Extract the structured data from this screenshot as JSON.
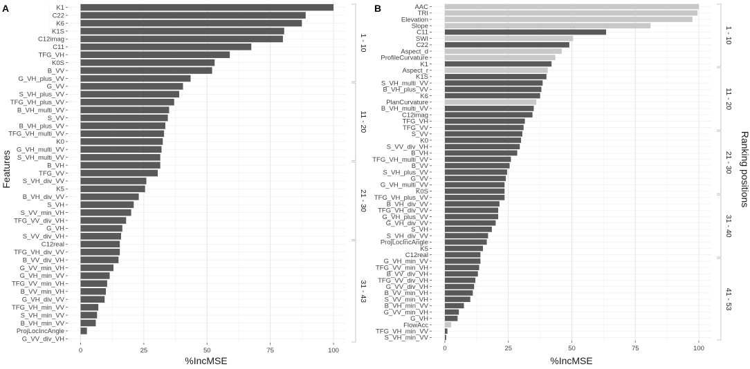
{
  "chart_data": [
    {
      "type": "bar",
      "panel_label": "A",
      "orientation": "horizontal",
      "xlabel": "%IncMSE",
      "ylabel": "Features",
      "xlim": [
        0,
        100
      ],
      "x_ticks": [
        "0",
        "25",
        "50",
        "75",
        "100"
      ],
      "categories": [
        "K1",
        "C22",
        "K6",
        "K1S",
        "C12imag",
        "C11",
        "TFG_VH",
        "K0S",
        "B_VV",
        "G_VH_plus_VV",
        "G_VV",
        "S_VH_plus_VV",
        "TFG_VH_plus_VV",
        "B_VH_multi_VV",
        "S_VV",
        "B_VH_plus_VV",
        "TFG_VH_multi_VV",
        "K0",
        "G_VH_multi_VV",
        "S_VH_multi_VV",
        "B_VH",
        "TFG_VV",
        "S_VH_div_VV",
        "K5",
        "B_VH_div_VV",
        "S_VH",
        "S_VV_min_VH",
        "TFG_VV_div_VH",
        "G_VH",
        "S_VV_div_VH",
        "C12real",
        "TFG_VH_div_VV",
        "B_VV_div_VH",
        "G_VV_min_VH",
        "G_VH_min_VV",
        "TFG_VV_min_VH",
        "B_VV_min_VH",
        "G_VH_div_VV",
        "TFG_VH_min_VV",
        "S_VH_min_VV",
        "B_VH_min_VV",
        "ProjLocIncAngle",
        "G_VV_div_VH"
      ],
      "values": [
        100,
        89,
        87.5,
        80.5,
        80,
        67.5,
        59,
        53,
        52,
        43.5,
        40.5,
        39,
        37,
        35,
        34.5,
        33.5,
        33,
        32.5,
        32,
        31.5,
        31.5,
        30.5,
        26,
        25.5,
        23,
        21,
        20,
        18,
        16.5,
        16,
        15.5,
        15.5,
        15,
        13,
        11.5,
        10.5,
        10,
        9.5,
        7,
        6.5,
        6,
        2.5,
        0
      ],
      "groups": [
        {
          "label": "1 - 10",
          "start": 1,
          "end": 10
        },
        {
          "label": "11 - 20",
          "start": 11,
          "end": 20
        },
        {
          "label": "21 - 30",
          "start": 21,
          "end": 30
        },
        {
          "label": "31 - 43",
          "start": 31,
          "end": 43
        }
      ],
      "colors": {
        "bar": "#595959"
      }
    },
    {
      "type": "bar",
      "panel_label": "B",
      "orientation": "horizontal",
      "xlabel": "%IncMSE",
      "ylabel": "Ranking positions",
      "xlim": [
        0,
        100
      ],
      "x_ticks": [
        "0",
        "25",
        "50",
        "75",
        "100"
      ],
      "categories": [
        "AAC",
        "TRI",
        "Elevation",
        "Slope",
        "C11",
        "SWI",
        "C22",
        "Aspect_d",
        "ProfileCurvature",
        "K1",
        "Aspect_r",
        "K1S",
        "S_VH_multi_VV",
        "B_VH_plus_VV",
        "K6",
        "PlanCurvature",
        "B_VH_multi_VV",
        "C12imag",
        "TFG_VH",
        "TFG_VV",
        "S_VV",
        "K0",
        "S_VV_div_VH",
        "B_VH",
        "TFG_VH_multi_VV",
        "B_VV",
        "S_VH_plus_VV",
        "G_VV",
        "G_VH_multi_VV",
        "K0S",
        "TFG_VH_plus_VV",
        "B_VH_div_VV",
        "TFG_VH_div_VV",
        "G_VH_plus_VV",
        "G_VH_div_VV",
        "S_VH",
        "S_VH_div_VV",
        "ProjLocIncAngle",
        "K5",
        "C12real",
        "G_VH_min_VV",
        "TFG_VV_min_VH",
        "B_VV_div_VH",
        "TFG_VV_div_VH",
        "G_VV_div_VH",
        "B_VV_min_VH",
        "S_VV_min_VH",
        "B_VH_min_VV",
        "G_VV_min_VH",
        "G_VH",
        "FlowAcc",
        "TFG_VH_min_VV",
        "S_VH_min_VV"
      ],
      "values": [
        100,
        99.5,
        97.5,
        81,
        63.5,
        50.5,
        49,
        46,
        43.5,
        42,
        40.5,
        40,
        38.5,
        38,
        37.5,
        36,
        35,
        34.5,
        31.5,
        31,
        30.5,
        30,
        29.5,
        28.5,
        26,
        25.5,
        24.5,
        24,
        23.5,
        23.5,
        23.5,
        21.5,
        21,
        21,
        20,
        18.5,
        17,
        16.5,
        15,
        14,
        14,
        13.5,
        13,
        12,
        11.5,
        11,
        10,
        7.5,
        5.5,
        5,
        2.5,
        1,
        0.5
      ],
      "terrain_features": [
        "AAC",
        "TRI",
        "Elevation",
        "Slope",
        "SWI",
        "Aspect_d",
        "ProfileCurvature",
        "Aspect_r",
        "PlanCurvature",
        "FlowAcc"
      ],
      "groups": [
        {
          "label": "1 - 10",
          "start": 1,
          "end": 10
        },
        {
          "label": "11 - 20",
          "start": 11,
          "end": 20
        },
        {
          "label": "21 - 30",
          "start": 21,
          "end": 30
        },
        {
          "label": "31 - 40",
          "start": 31,
          "end": 40
        },
        {
          "label": "41 - 53",
          "start": 41,
          "end": 53
        }
      ],
      "colors": {
        "bar": "#595959",
        "terrain_bar": "#c8c8c8"
      }
    }
  ]
}
